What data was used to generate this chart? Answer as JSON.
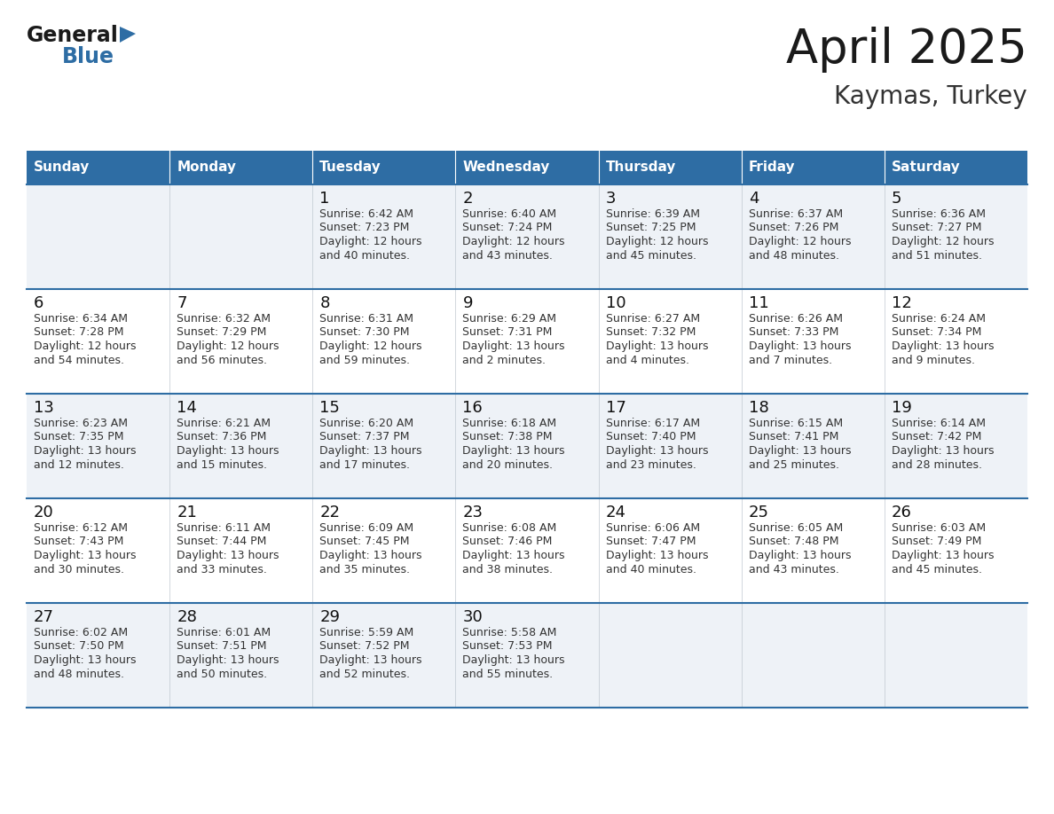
{
  "title": "April 2025",
  "subtitle": "Kaymas, Turkey",
  "header_bg": "#2E6DA4",
  "header_text_color": "#FFFFFF",
  "row_line_color": "#2E6DA4",
  "cell_bg_light": "#EEF2F7",
  "cell_bg_white": "#FFFFFF",
  "day_headers": [
    "Sunday",
    "Monday",
    "Tuesday",
    "Wednesday",
    "Thursday",
    "Friday",
    "Saturday"
  ],
  "days": [
    {
      "day": 1,
      "col": 2,
      "row": 0,
      "sunrise": "6:42 AM",
      "sunset": "7:23 PM",
      "daylight": "12 hours and 40 minutes."
    },
    {
      "day": 2,
      "col": 3,
      "row": 0,
      "sunrise": "6:40 AM",
      "sunset": "7:24 PM",
      "daylight": "12 hours and 43 minutes."
    },
    {
      "day": 3,
      "col": 4,
      "row": 0,
      "sunrise": "6:39 AM",
      "sunset": "7:25 PM",
      "daylight": "12 hours and 45 minutes."
    },
    {
      "day": 4,
      "col": 5,
      "row": 0,
      "sunrise": "6:37 AM",
      "sunset": "7:26 PM",
      "daylight": "12 hours and 48 minutes."
    },
    {
      "day": 5,
      "col": 6,
      "row": 0,
      "sunrise": "6:36 AM",
      "sunset": "7:27 PM",
      "daylight": "12 hours and 51 minutes."
    },
    {
      "day": 6,
      "col": 0,
      "row": 1,
      "sunrise": "6:34 AM",
      "sunset": "7:28 PM",
      "daylight": "12 hours and 54 minutes."
    },
    {
      "day": 7,
      "col": 1,
      "row": 1,
      "sunrise": "6:32 AM",
      "sunset": "7:29 PM",
      "daylight": "12 hours and 56 minutes."
    },
    {
      "day": 8,
      "col": 2,
      "row": 1,
      "sunrise": "6:31 AM",
      "sunset": "7:30 PM",
      "daylight": "12 hours and 59 minutes."
    },
    {
      "day": 9,
      "col": 3,
      "row": 1,
      "sunrise": "6:29 AM",
      "sunset": "7:31 PM",
      "daylight": "13 hours and 2 minutes."
    },
    {
      "day": 10,
      "col": 4,
      "row": 1,
      "sunrise": "6:27 AM",
      "sunset": "7:32 PM",
      "daylight": "13 hours and 4 minutes."
    },
    {
      "day": 11,
      "col": 5,
      "row": 1,
      "sunrise": "6:26 AM",
      "sunset": "7:33 PM",
      "daylight": "13 hours and 7 minutes."
    },
    {
      "day": 12,
      "col": 6,
      "row": 1,
      "sunrise": "6:24 AM",
      "sunset": "7:34 PM",
      "daylight": "13 hours and 9 minutes."
    },
    {
      "day": 13,
      "col": 0,
      "row": 2,
      "sunrise": "6:23 AM",
      "sunset": "7:35 PM",
      "daylight": "13 hours and 12 minutes."
    },
    {
      "day": 14,
      "col": 1,
      "row": 2,
      "sunrise": "6:21 AM",
      "sunset": "7:36 PM",
      "daylight": "13 hours and 15 minutes."
    },
    {
      "day": 15,
      "col": 2,
      "row": 2,
      "sunrise": "6:20 AM",
      "sunset": "7:37 PM",
      "daylight": "13 hours and 17 minutes."
    },
    {
      "day": 16,
      "col": 3,
      "row": 2,
      "sunrise": "6:18 AM",
      "sunset": "7:38 PM",
      "daylight": "13 hours and 20 minutes."
    },
    {
      "day": 17,
      "col": 4,
      "row": 2,
      "sunrise": "6:17 AM",
      "sunset": "7:40 PM",
      "daylight": "13 hours and 23 minutes."
    },
    {
      "day": 18,
      "col": 5,
      "row": 2,
      "sunrise": "6:15 AM",
      "sunset": "7:41 PM",
      "daylight": "13 hours and 25 minutes."
    },
    {
      "day": 19,
      "col": 6,
      "row": 2,
      "sunrise": "6:14 AM",
      "sunset": "7:42 PM",
      "daylight": "13 hours and 28 minutes."
    },
    {
      "day": 20,
      "col": 0,
      "row": 3,
      "sunrise": "6:12 AM",
      "sunset": "7:43 PM",
      "daylight": "13 hours and 30 minutes."
    },
    {
      "day": 21,
      "col": 1,
      "row": 3,
      "sunrise": "6:11 AM",
      "sunset": "7:44 PM",
      "daylight": "13 hours and 33 minutes."
    },
    {
      "day": 22,
      "col": 2,
      "row": 3,
      "sunrise": "6:09 AM",
      "sunset": "7:45 PM",
      "daylight": "13 hours and 35 minutes."
    },
    {
      "day": 23,
      "col": 3,
      "row": 3,
      "sunrise": "6:08 AM",
      "sunset": "7:46 PM",
      "daylight": "13 hours and 38 minutes."
    },
    {
      "day": 24,
      "col": 4,
      "row": 3,
      "sunrise": "6:06 AM",
      "sunset": "7:47 PM",
      "daylight": "13 hours and 40 minutes."
    },
    {
      "day": 25,
      "col": 5,
      "row": 3,
      "sunrise": "6:05 AM",
      "sunset": "7:48 PM",
      "daylight": "13 hours and 43 minutes."
    },
    {
      "day": 26,
      "col": 6,
      "row": 3,
      "sunrise": "6:03 AM",
      "sunset": "7:49 PM",
      "daylight": "13 hours and 45 minutes."
    },
    {
      "day": 27,
      "col": 0,
      "row": 4,
      "sunrise": "6:02 AM",
      "sunset": "7:50 PM",
      "daylight": "13 hours and 48 minutes."
    },
    {
      "day": 28,
      "col": 1,
      "row": 4,
      "sunrise": "6:01 AM",
      "sunset": "7:51 PM",
      "daylight": "13 hours and 50 minutes."
    },
    {
      "day": 29,
      "col": 2,
      "row": 4,
      "sunrise": "5:59 AM",
      "sunset": "7:52 PM",
      "daylight": "13 hours and 52 minutes."
    },
    {
      "day": 30,
      "col": 3,
      "row": 4,
      "sunrise": "5:58 AM",
      "sunset": "7:53 PM",
      "daylight": "13 hours and 55 minutes."
    }
  ]
}
